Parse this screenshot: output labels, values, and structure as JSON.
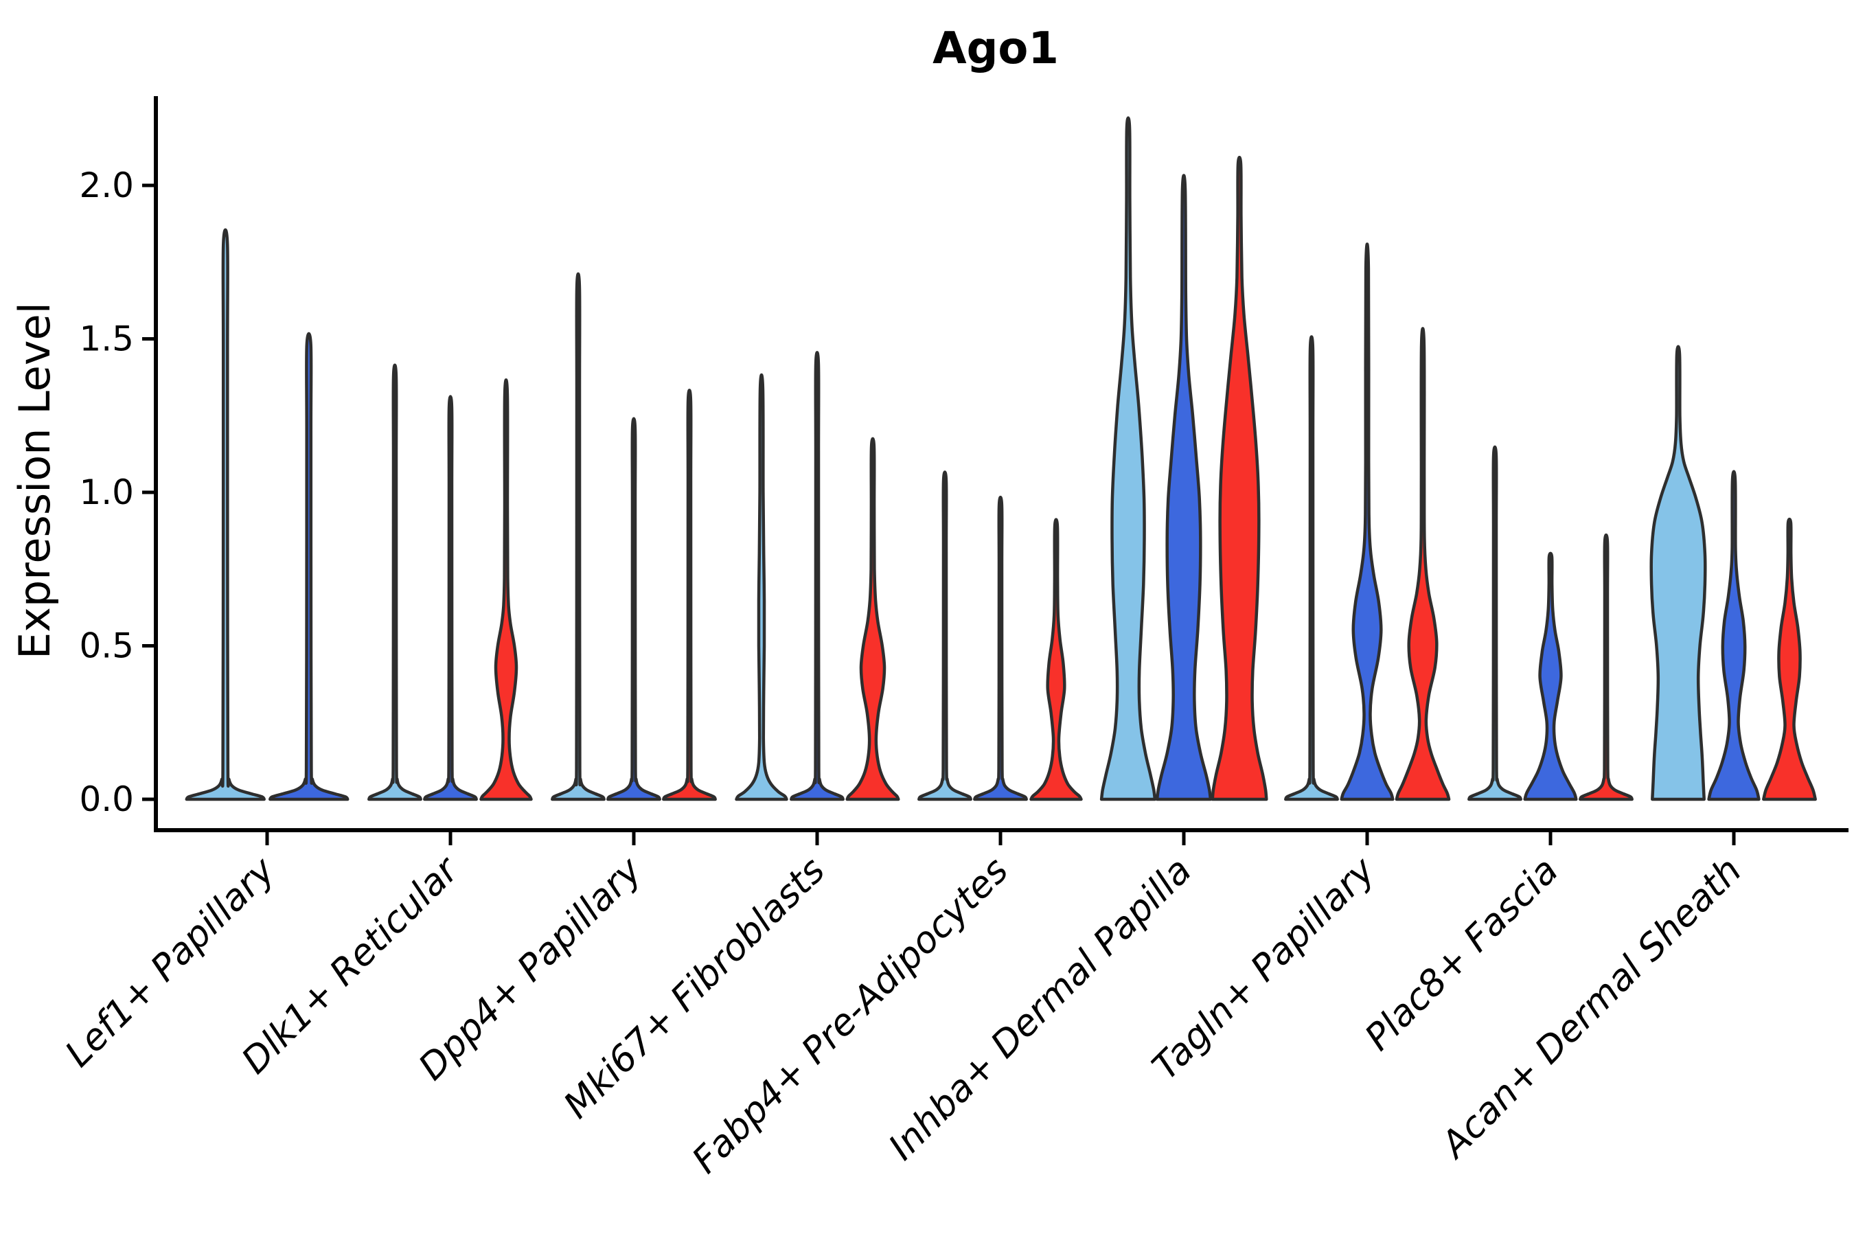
{
  "page": {
    "background": "#ffffff"
  },
  "chart_data": {
    "type": "violin",
    "title": "Ago1",
    "ylabel": "Expression Level",
    "xlabel": "",
    "yticks": [
      0.0,
      0.5,
      1.0,
      1.5,
      2.0
    ],
    "ytick_labels": [
      "0.0",
      "0.5",
      "1.0",
      "1.5",
      "2.0"
    ],
    "ylim": [
      -0.1,
      2.29
    ],
    "grid": false,
    "legend_position": "none",
    "axis_color": "#000000",
    "outline_color": "#2e2e2e",
    "hue_colors": {
      "light_blue": "#85C3E8",
      "dark_blue": "#3D68DE",
      "red": "#F8312A"
    },
    "categories": [
      "Lef1+ Papillary",
      "Dlk1+ Reticular",
      "Dpp4+ Papillary",
      "Mki67+ Fibroblasts",
      "Fabp4+ Pre-Adipocytes",
      "Inhba+ Dermal Papilla",
      "Tagln+ Papillary",
      "Plac8+ Fascia",
      "Acan+ Dermal Sheath"
    ],
    "groups": [
      {
        "category": "Lef1+ Papillary",
        "violins": [
          {
            "hue": "light_blue",
            "max": 1.81,
            "shape": "spike"
          },
          {
            "hue": "dark_blue",
            "max": 1.48,
            "shape": "spike"
          }
        ]
      },
      {
        "category": "Dlk1+ Reticular",
        "violins": [
          {
            "hue": "light_blue",
            "max": 1.38,
            "shape": "spike"
          },
          {
            "hue": "dark_blue",
            "max": 1.28,
            "shape": "spike"
          },
          {
            "hue": "red",
            "max": 1.32,
            "profile": [
              [
                0,
                0.9
              ],
              [
                0.01,
                0.85
              ],
              [
                0.025,
                0.68
              ],
              [
                0.05,
                0.45
              ],
              [
                0.09,
                0.26
              ],
              [
                0.14,
                0.15
              ],
              [
                0.2,
                0.11
              ],
              [
                0.27,
                0.16
              ],
              [
                0.35,
                0.3
              ],
              [
                0.43,
                0.37
              ],
              [
                0.5,
                0.3
              ],
              [
                0.57,
                0.16
              ],
              [
                0.63,
                0.09
              ],
              [
                0.72,
                0.06
              ],
              [
                0.95,
                0.05
              ],
              [
                1.32,
                0.048
              ]
            ]
          }
        ]
      },
      {
        "category": "Dpp4+ Papillary",
        "violins": [
          {
            "hue": "light_blue",
            "max": 1.67,
            "shape": "spike"
          },
          {
            "hue": "dark_blue",
            "max": 1.21,
            "shape": "spike"
          },
          {
            "hue": "red",
            "max": 1.3,
            "shape": "spike"
          }
        ]
      },
      {
        "category": "Mki67+ Fibroblasts",
        "violins": [
          {
            "hue": "light_blue",
            "max": 1.34,
            "profile": [
              [
                0,
                0.9
              ],
              [
                0.01,
                0.84
              ],
              [
                0.025,
                0.6
              ],
              [
                0.05,
                0.34
              ],
              [
                0.08,
                0.18
              ],
              [
                0.12,
                0.1
              ],
              [
                0.2,
                0.07
              ],
              [
                0.35,
                0.08
              ],
              [
                0.5,
                0.1
              ],
              [
                0.65,
                0.1
              ],
              [
                0.8,
                0.08
              ],
              [
                1.0,
                0.06
              ],
              [
                1.34,
                0.048
              ]
            ]
          },
          {
            "hue": "dark_blue",
            "max": 1.42,
            "shape": "spike"
          },
          {
            "hue": "red",
            "max": 1.15,
            "profile": [
              [
                0,
                0.92
              ],
              [
                0.01,
                0.87
              ],
              [
                0.025,
                0.7
              ],
              [
                0.05,
                0.48
              ],
              [
                0.09,
                0.28
              ],
              [
                0.14,
                0.16
              ],
              [
                0.2,
                0.12
              ],
              [
                0.28,
                0.2
              ],
              [
                0.36,
                0.36
              ],
              [
                0.43,
                0.42
              ],
              [
                0.5,
                0.34
              ],
              [
                0.58,
                0.18
              ],
              [
                0.65,
                0.1
              ],
              [
                0.75,
                0.06
              ],
              [
                0.95,
                0.052
              ],
              [
                1.15,
                0.048
              ]
            ]
          }
        ]
      },
      {
        "category": "Fabp4+ Pre-Adipocytes",
        "violins": [
          {
            "hue": "light_blue",
            "max": 1.04,
            "shape": "spike"
          },
          {
            "hue": "dark_blue",
            "max": 0.96,
            "shape": "spike"
          },
          {
            "hue": "red",
            "max": 0.89,
            "profile": [
              [
                0,
                0.9
              ],
              [
                0.01,
                0.84
              ],
              [
                0.025,
                0.65
              ],
              [
                0.05,
                0.42
              ],
              [
                0.09,
                0.24
              ],
              [
                0.14,
                0.13
              ],
              [
                0.2,
                0.1
              ],
              [
                0.28,
                0.18
              ],
              [
                0.36,
                0.3
              ],
              [
                0.44,
                0.26
              ],
              [
                0.52,
                0.14
              ],
              [
                0.6,
                0.07
              ],
              [
                0.72,
                0.052
              ],
              [
                0.89,
                0.048
              ]
            ]
          }
        ]
      },
      {
        "category": "Inhba+ Dermal Papilla",
        "violins": [
          {
            "hue": "light_blue",
            "max": 2.19,
            "profile": [
              [
                0,
                0.96
              ],
              [
                0.03,
                0.92
              ],
              [
                0.08,
                0.8
              ],
              [
                0.15,
                0.62
              ],
              [
                0.23,
                0.47
              ],
              [
                0.32,
                0.4
              ],
              [
                0.42,
                0.4
              ],
              [
                0.55,
                0.47
              ],
              [
                0.7,
                0.55
              ],
              [
                0.85,
                0.58
              ],
              [
                0.98,
                0.57
              ],
              [
                1.12,
                0.5
              ],
              [
                1.28,
                0.38
              ],
              [
                1.42,
                0.24
              ],
              [
                1.55,
                0.13
              ],
              [
                1.7,
                0.08
              ],
              [
                1.95,
                0.06
              ],
              [
                2.19,
                0.05
              ]
            ]
          },
          {
            "hue": "dark_blue",
            "max": 1.99,
            "profile": [
              [
                0,
                0.96
              ],
              [
                0.03,
                0.92
              ],
              [
                0.08,
                0.8
              ],
              [
                0.15,
                0.6
              ],
              [
                0.23,
                0.44
              ],
              [
                0.32,
                0.38
              ],
              [
                0.42,
                0.4
              ],
              [
                0.55,
                0.5
              ],
              [
                0.7,
                0.58
              ],
              [
                0.85,
                0.6
              ],
              [
                0.98,
                0.56
              ],
              [
                1.1,
                0.46
              ],
              [
                1.25,
                0.32
              ],
              [
                1.38,
                0.18
              ],
              [
                1.5,
                0.1
              ],
              [
                1.65,
                0.07
              ],
              [
                1.99,
                0.05
              ]
            ]
          },
          {
            "hue": "red",
            "max": 2.07,
            "profile": [
              [
                0,
                0.97
              ],
              [
                0.03,
                0.94
              ],
              [
                0.08,
                0.84
              ],
              [
                0.15,
                0.66
              ],
              [
                0.23,
                0.52
              ],
              [
                0.32,
                0.46
              ],
              [
                0.42,
                0.48
              ],
              [
                0.55,
                0.58
              ],
              [
                0.7,
                0.66
              ],
              [
                0.88,
                0.7
              ],
              [
                1.02,
                0.68
              ],
              [
                1.15,
                0.6
              ],
              [
                1.3,
                0.46
              ],
              [
                1.45,
                0.3
              ],
              [
                1.58,
                0.16
              ],
              [
                1.7,
                0.09
              ],
              [
                1.9,
                0.06
              ],
              [
                2.07,
                0.05
              ]
            ]
          }
        ]
      },
      {
        "category": "Tagln+ Papillary",
        "violins": [
          {
            "hue": "light_blue",
            "max": 1.47,
            "shape": "spike"
          },
          {
            "hue": "dark_blue",
            "max": 1.73,
            "profile": [
              [
                0,
                0.92
              ],
              [
                0.02,
                0.86
              ],
              [
                0.05,
                0.68
              ],
              [
                0.1,
                0.46
              ],
              [
                0.15,
                0.28
              ],
              [
                0.21,
                0.16
              ],
              [
                0.28,
                0.11
              ],
              [
                0.36,
                0.18
              ],
              [
                0.46,
                0.4
              ],
              [
                0.55,
                0.5
              ],
              [
                0.64,
                0.42
              ],
              [
                0.73,
                0.24
              ],
              [
                0.81,
                0.12
              ],
              [
                0.9,
                0.07
              ],
              [
                1.1,
                0.055
              ],
              [
                1.73,
                0.048
              ]
            ]
          },
          {
            "hue": "red",
            "max": 1.48,
            "profile": [
              [
                0,
                0.94
              ],
              [
                0.02,
                0.88
              ],
              [
                0.05,
                0.72
              ],
              [
                0.1,
                0.5
              ],
              [
                0.15,
                0.3
              ],
              [
                0.2,
                0.17
              ],
              [
                0.26,
                0.12
              ],
              [
                0.34,
                0.22
              ],
              [
                0.43,
                0.44
              ],
              [
                0.51,
                0.5
              ],
              [
                0.59,
                0.4
              ],
              [
                0.67,
                0.22
              ],
              [
                0.75,
                0.11
              ],
              [
                0.85,
                0.06
              ],
              [
                1.05,
                0.052
              ],
              [
                1.48,
                0.048
              ]
            ]
          }
        ]
      },
      {
        "category": "Plac8+ Fascia",
        "violins": [
          {
            "hue": "light_blue",
            "max": 1.12,
            "shape": "spike"
          },
          {
            "hue": "dark_blue",
            "max": 0.79,
            "profile": [
              [
                0,
                0.92
              ],
              [
                0.02,
                0.86
              ],
              [
                0.05,
                0.68
              ],
              [
                0.09,
                0.45
              ],
              [
                0.14,
                0.26
              ],
              [
                0.19,
                0.15
              ],
              [
                0.25,
                0.13
              ],
              [
                0.32,
                0.25
              ],
              [
                0.4,
                0.38
              ],
              [
                0.48,
                0.3
              ],
              [
                0.55,
                0.16
              ],
              [
                0.62,
                0.08
              ],
              [
                0.7,
                0.055
              ],
              [
                0.79,
                0.05
              ]
            ]
          },
          {
            "hue": "red",
            "max": 0.84,
            "shape": "spike"
          }
        ]
      },
      {
        "category": "Acan+ Dermal Sheath",
        "violins": [
          {
            "hue": "light_blue",
            "max": 1.45,
            "profile": [
              [
                0,
                0.93
              ],
              [
                0.06,
                0.9
              ],
              [
                0.14,
                0.86
              ],
              [
                0.22,
                0.8
              ],
              [
                0.3,
                0.75
              ],
              [
                0.4,
                0.72
              ],
              [
                0.5,
                0.78
              ],
              [
                0.6,
                0.9
              ],
              [
                0.7,
                0.96
              ],
              [
                0.8,
                0.96
              ],
              [
                0.9,
                0.86
              ],
              [
                0.98,
                0.64
              ],
              [
                1.05,
                0.38
              ],
              [
                1.1,
                0.2
              ],
              [
                1.16,
                0.1
              ],
              [
                1.25,
                0.06
              ],
              [
                1.45,
                0.05
              ]
            ]
          },
          {
            "hue": "dark_blue",
            "max": 1.04,
            "profile": [
              [
                0,
                0.9
              ],
              [
                0.03,
                0.82
              ],
              [
                0.07,
                0.62
              ],
              [
                0.12,
                0.42
              ],
              [
                0.18,
                0.25
              ],
              [
                0.25,
                0.16
              ],
              [
                0.33,
                0.22
              ],
              [
                0.42,
                0.36
              ],
              [
                0.5,
                0.4
              ],
              [
                0.58,
                0.34
              ],
              [
                0.66,
                0.2
              ],
              [
                0.74,
                0.1
              ],
              [
                0.82,
                0.06
              ],
              [
                1.04,
                0.05
              ]
            ]
          },
          {
            "hue": "red",
            "max": 0.9,
            "profile": [
              [
                0,
                0.93
              ],
              [
                0.03,
                0.85
              ],
              [
                0.07,
                0.66
              ],
              [
                0.12,
                0.44
              ],
              [
                0.18,
                0.26
              ],
              [
                0.24,
                0.16
              ],
              [
                0.32,
                0.24
              ],
              [
                0.4,
                0.36
              ],
              [
                0.48,
                0.38
              ],
              [
                0.56,
                0.3
              ],
              [
                0.64,
                0.16
              ],
              [
                0.72,
                0.08
              ],
              [
                0.8,
                0.055
              ],
              [
                0.9,
                0.05
              ]
            ]
          }
        ]
      }
    ]
  }
}
